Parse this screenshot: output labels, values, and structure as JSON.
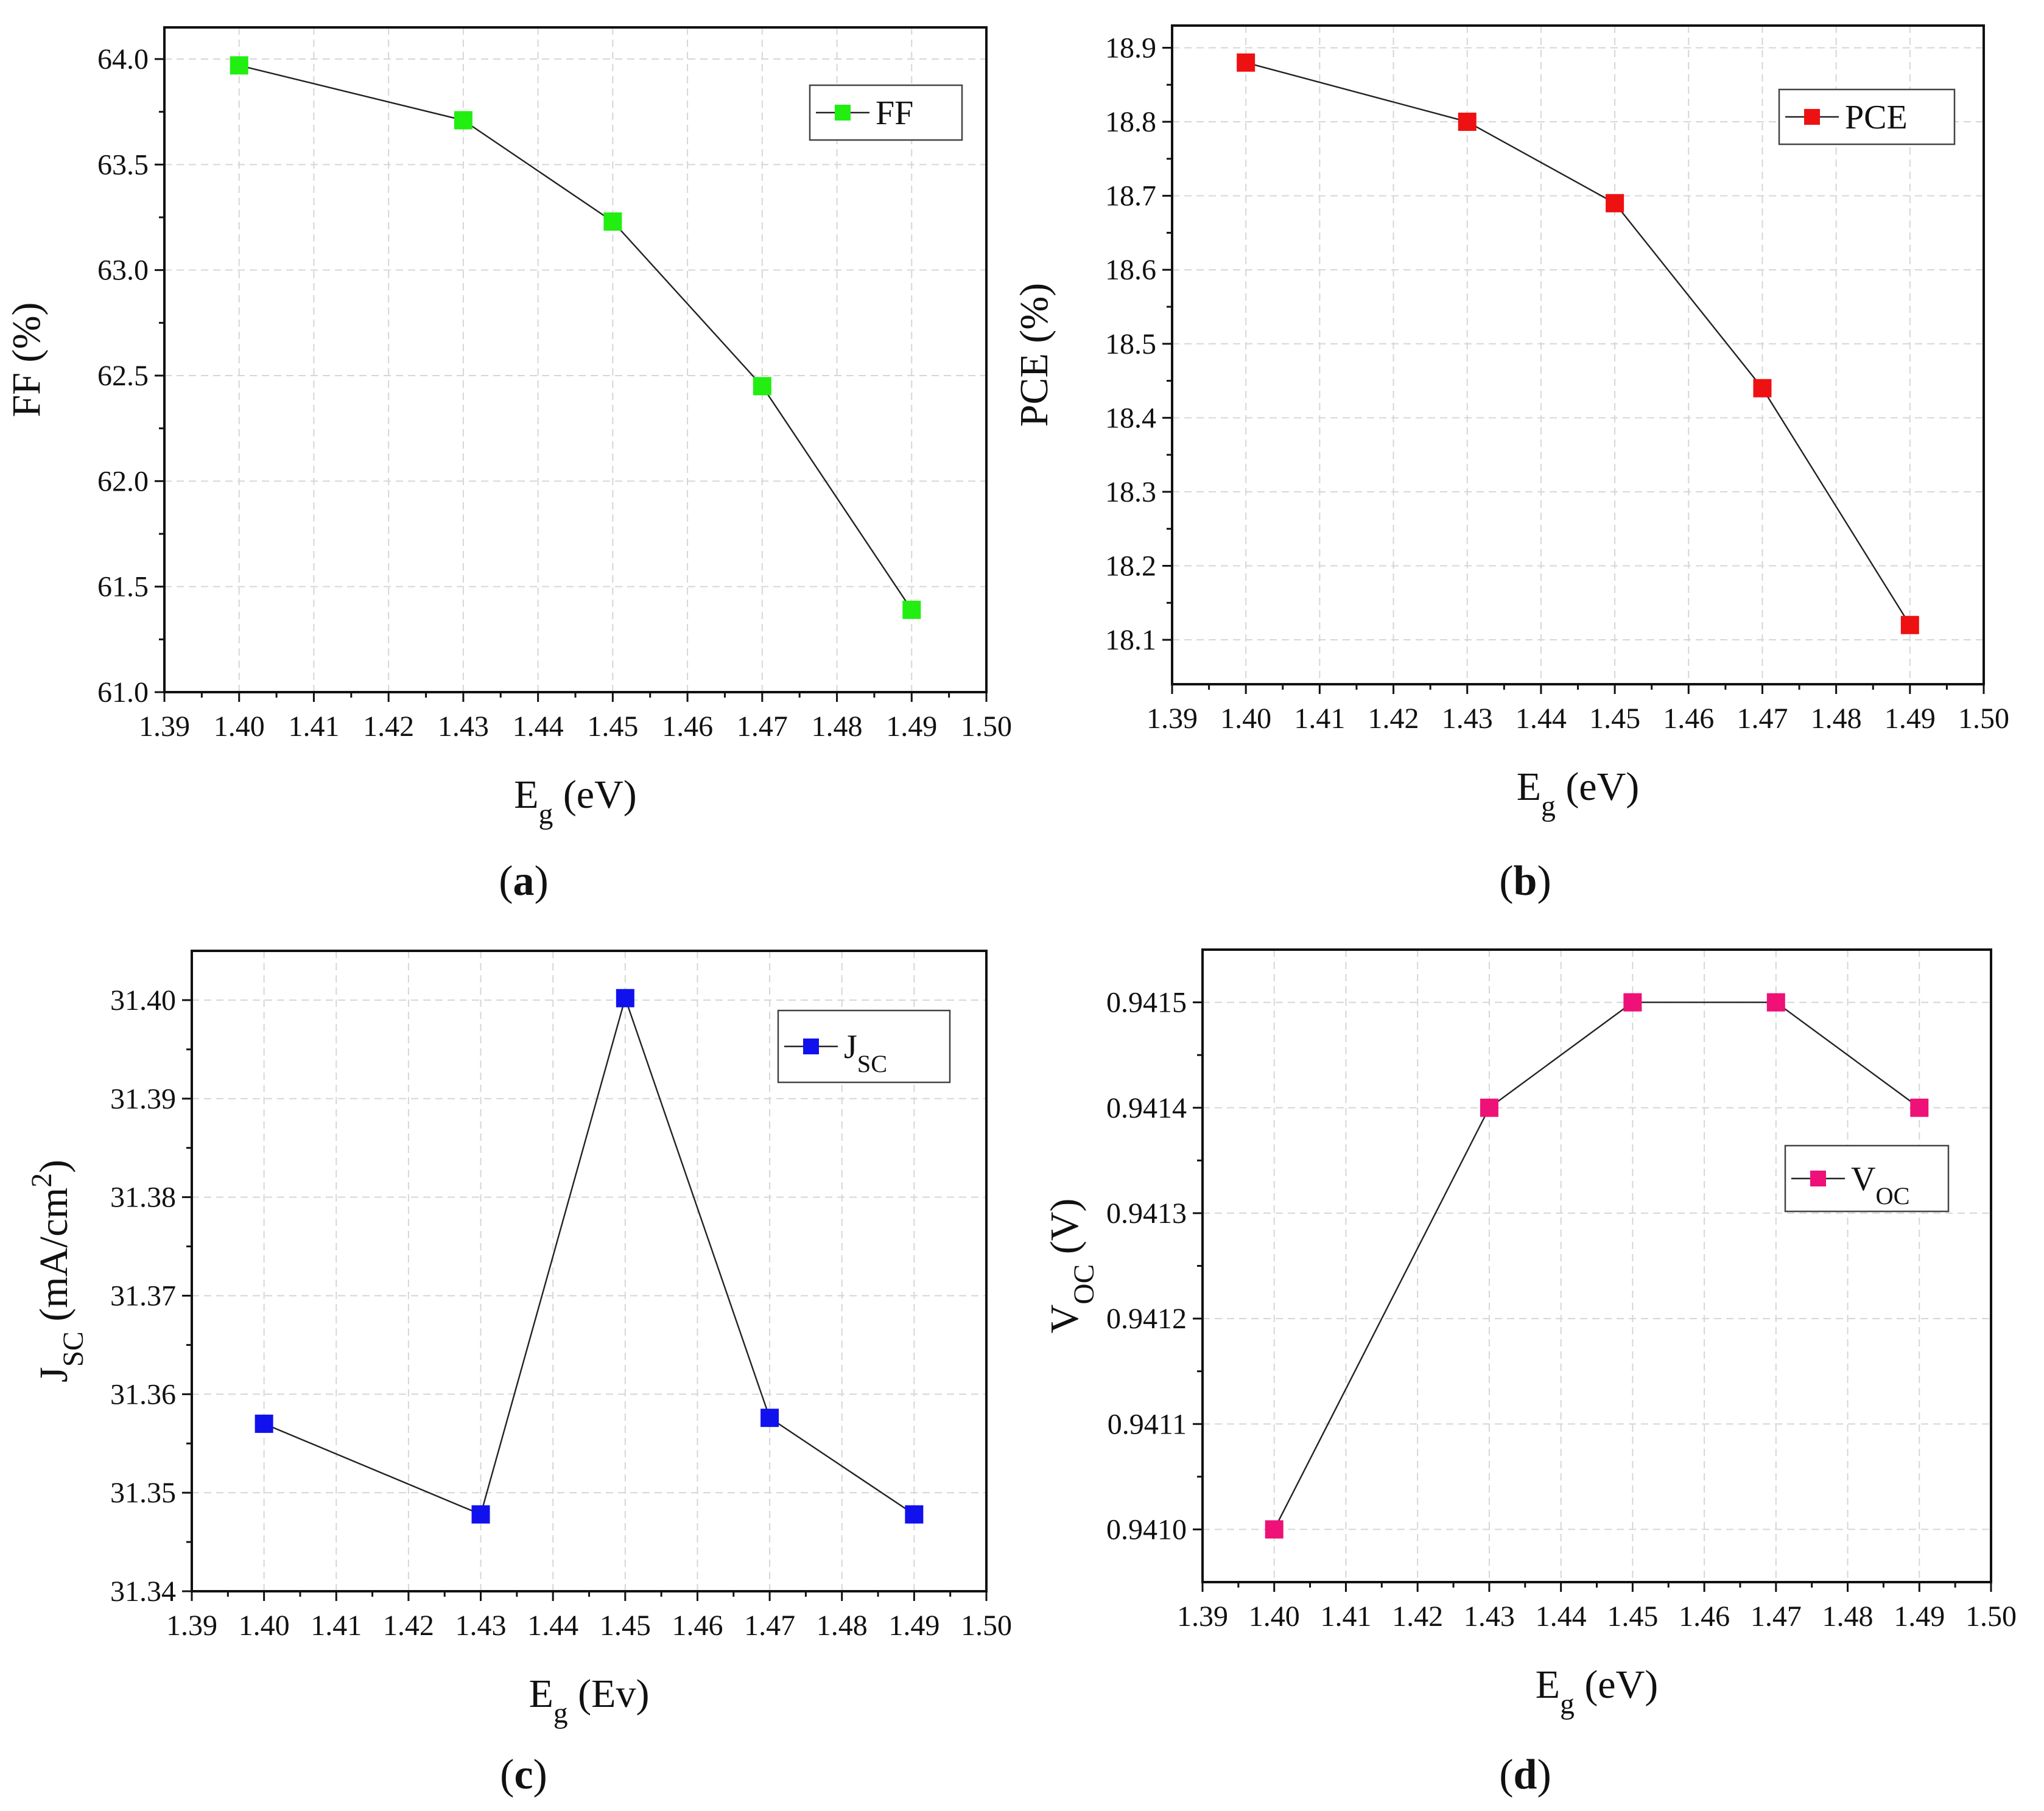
{
  "figure": {
    "panels": [
      {
        "label_open": "(",
        "label_letter": "a",
        "label_close": ")"
      },
      {
        "label_open": "(",
        "label_letter": "b",
        "label_close": ")"
      },
      {
        "label_open": "(",
        "label_letter": "c",
        "label_close": ")"
      },
      {
        "label_open": "(",
        "label_letter": "d",
        "label_close": ")"
      }
    ]
  },
  "chart_data": [
    {
      "type": "line",
      "panel": "(a)",
      "title": "",
      "xlabel": {
        "main": "E",
        "sub": "g",
        "sup": "",
        "tail": " (eV)"
      },
      "ylabel": {
        "main": "FF (%)",
        "sub": "",
        "sup": "",
        "tail": ""
      },
      "xlim": [
        1.39,
        1.5
      ],
      "ylim": [
        61.0,
        64.15
      ],
      "x_ticks": [
        1.39,
        1.4,
        1.41,
        1.42,
        1.43,
        1.44,
        1.45,
        1.46,
        1.47,
        1.48,
        1.49,
        1.5
      ],
      "x_tick_labels": [
        "1.39",
        "1.40",
        "1.41",
        "1.42",
        "1.43",
        "1.44",
        "1.45",
        "1.46",
        "1.47",
        "1.48",
        "1.49",
        "1.50"
      ],
      "y_ticks": [
        61.0,
        61.5,
        62.0,
        62.5,
        63.0,
        63.5,
        64.0
      ],
      "y_tick_labels": [
        "61.0",
        "61.5",
        "62.0",
        "62.5",
        "63.0",
        "63.5",
        "64.0"
      ],
      "grid": true,
      "legend_position": "top-right",
      "series": [
        {
          "name": "FF",
          "name_main": "FF",
          "name_sub": "",
          "color": "#22ee11",
          "x": [
            1.4,
            1.43,
            1.45,
            1.47,
            1.49
          ],
          "y": [
            63.97,
            63.71,
            63.23,
            62.45,
            61.39
          ]
        }
      ]
    },
    {
      "type": "line",
      "panel": "(b)",
      "title": "",
      "xlabel": {
        "main": "E",
        "sub": "g",
        "sup": "",
        "tail": " (eV)"
      },
      "ylabel": {
        "main": "PCE (%)",
        "sub": "",
        "sup": "",
        "tail": ""
      },
      "xlim": [
        1.39,
        1.5
      ],
      "ylim": [
        18.04,
        18.93
      ],
      "x_ticks": [
        1.39,
        1.4,
        1.41,
        1.42,
        1.43,
        1.44,
        1.45,
        1.46,
        1.47,
        1.48,
        1.49,
        1.5
      ],
      "x_tick_labels": [
        "1.39",
        "1.40",
        "1.41",
        "1.42",
        "1.43",
        "1.44",
        "1.45",
        "1.46",
        "1.47",
        "1.48",
        "1.49",
        "1.50"
      ],
      "y_ticks": [
        18.1,
        18.2,
        18.3,
        18.4,
        18.5,
        18.6,
        18.7,
        18.8,
        18.9
      ],
      "y_tick_labels": [
        "18.1",
        "18.2",
        "18.3",
        "18.4",
        "18.5",
        "18.6",
        "18.7",
        "18.8",
        "18.9"
      ],
      "grid": true,
      "legend_position": "top-right",
      "series": [
        {
          "name": "PCE",
          "name_main": "PCE",
          "name_sub": "",
          "color": "#ee1111",
          "x": [
            1.4,
            1.43,
            1.45,
            1.47,
            1.49
          ],
          "y": [
            18.88,
            18.8,
            18.69,
            18.44,
            18.12
          ]
        }
      ]
    },
    {
      "type": "line",
      "panel": "(c)",
      "title": "",
      "xlabel": {
        "main": "E",
        "sub": "g",
        "sup": "",
        "tail": " (Ev)"
      },
      "ylabel": {
        "main": "J",
        "sub": "SC",
        "sup": "2",
        "tail": " (mA/cm",
        "tail2": ")"
      },
      "xlim": [
        1.39,
        1.5
      ],
      "ylim": [
        31.34,
        31.405
      ],
      "x_ticks": [
        1.39,
        1.4,
        1.41,
        1.42,
        1.43,
        1.44,
        1.45,
        1.46,
        1.47,
        1.48,
        1.49,
        1.5
      ],
      "x_tick_labels": [
        "1.39",
        "1.40",
        "1.41",
        "1.42",
        "1.43",
        "1.44",
        "1.45",
        "1.46",
        "1.47",
        "1.48",
        "1.49",
        "1.50"
      ],
      "y_ticks": [
        31.34,
        31.35,
        31.36,
        31.37,
        31.38,
        31.39,
        31.4
      ],
      "y_tick_labels": [
        "31.34",
        "31.35",
        "31.36",
        "31.37",
        "31.38",
        "31.39",
        "31.40"
      ],
      "grid": true,
      "legend_position": "top-right",
      "series": [
        {
          "name": "JSC",
          "name_main": "J",
          "name_sub": "SC",
          "color": "#1111ee",
          "x": [
            1.4,
            1.43,
            1.45,
            1.47,
            1.49
          ],
          "y": [
            31.357,
            31.3478,
            31.4002,
            31.3576,
            31.3478
          ]
        }
      ]
    },
    {
      "type": "line",
      "panel": "(d)",
      "title": "",
      "xlabel": {
        "main": "E",
        "sub": "g",
        "sup": "",
        "tail": " (eV)"
      },
      "ylabel": {
        "main": "V",
        "sub": "OC",
        "sup": "",
        "tail": " (V)"
      },
      "xlim": [
        1.39,
        1.5
      ],
      "ylim": [
        0.94095,
        0.94155
      ],
      "x_ticks": [
        1.39,
        1.4,
        1.41,
        1.42,
        1.43,
        1.44,
        1.45,
        1.46,
        1.47,
        1.48,
        1.49,
        1.5
      ],
      "x_tick_labels": [
        "1.39",
        "1.40",
        "1.41",
        "1.42",
        "1.43",
        "1.44",
        "1.45",
        "1.46",
        "1.47",
        "1.48",
        "1.49",
        "1.50"
      ],
      "y_ticks": [
        0.941,
        0.9411,
        0.9412,
        0.9413,
        0.9414,
        0.9415
      ],
      "y_tick_labels": [
        "0.9410",
        "0.9411",
        "0.9412",
        "0.9413",
        "0.9414",
        "0.9415"
      ],
      "grid": true,
      "legend_position": "right",
      "series": [
        {
          "name": "VOC",
          "name_main": "V",
          "name_sub": "OC",
          "color": "#ee1177",
          "x": [
            1.4,
            1.43,
            1.45,
            1.47,
            1.49
          ],
          "y": [
            0.941,
            0.9414,
            0.9415,
            0.9415,
            0.9414
          ]
        }
      ]
    }
  ]
}
